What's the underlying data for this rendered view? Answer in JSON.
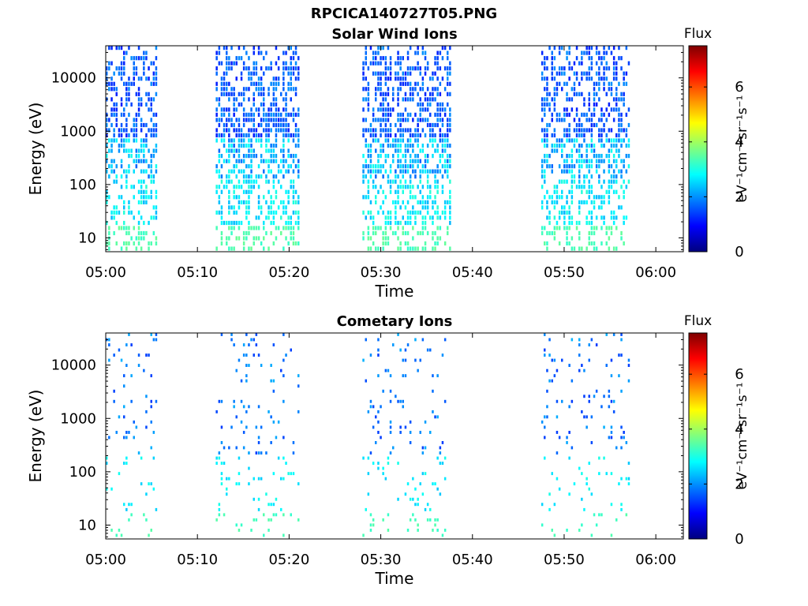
{
  "figure_title": "RPCICA140727T05.PNG",
  "colormap_stops": [
    "#00007f",
    "#0000ff",
    "#007fff",
    "#00ffff",
    "#7fff7f",
    "#ffff00",
    "#ff7f00",
    "#ff0000",
    "#7f0000"
  ],
  "chart_data": [
    {
      "type": "heatmap",
      "title": "Solar Wind Ions",
      "xlabel": "Time",
      "ylabel": "Energy (eV)",
      "y_scale": "log",
      "xlim": [
        "05:00",
        "06:03"
      ],
      "ylim": [
        5.5,
        40000
      ],
      "x_ticks": [
        "05:00",
        "05:10",
        "05:20",
        "05:30",
        "05:40",
        "05:50",
        "06:00"
      ],
      "y_ticks": [
        10,
        100,
        1000,
        10000
      ],
      "y_tick_labels": [
        "10",
        "100",
        "1000",
        "10000"
      ],
      "colorbar": {
        "label": "Flux",
        "unit": "eV⁻¹cm⁻²sr⁻¹s⁻¹",
        "range": [
          0,
          7.5
        ],
        "ticks": [
          0,
          2,
          4,
          6
        ],
        "tick_labels": [
          "0",
          "2",
          "4",
          "6"
        ]
      },
      "series": [
        {
          "start": "05:00",
          "end": "05:05.5",
          "density": 0.55
        },
        {
          "start": "05:12",
          "end": "05:21",
          "density": 0.6
        },
        {
          "start": "05:28",
          "end": "05:37.5",
          "density": 0.6
        },
        {
          "start": "05:47.5",
          "end": "05:57",
          "density": 0.55
        }
      ]
    },
    {
      "type": "heatmap",
      "title": "Cometary Ions",
      "xlabel": "Time",
      "ylabel": "Energy (eV)",
      "y_scale": "log",
      "xlim": [
        "05:00",
        "06:03"
      ],
      "ylim": [
        5.5,
        40000
      ],
      "x_ticks": [
        "05:00",
        "05:10",
        "05:20",
        "05:30",
        "05:40",
        "05:50",
        "06:00"
      ],
      "y_ticks": [
        10,
        100,
        1000,
        10000
      ],
      "y_tick_labels": [
        "10",
        "100",
        "1000",
        "10000"
      ],
      "colorbar": {
        "label": "Flux",
        "unit": "eV⁻¹cm⁻²sr⁻¹s⁻¹",
        "range": [
          0,
          7.5
        ],
        "ticks": [
          0,
          2,
          4,
          6
        ],
        "tick_labels": [
          "0",
          "2",
          "4",
          "6"
        ]
      },
      "series": [
        {
          "start": "05:00",
          "end": "05:05.5",
          "density": 0.12
        },
        {
          "start": "05:12",
          "end": "05:21",
          "density": 0.13
        },
        {
          "start": "05:28",
          "end": "05:37",
          "density": 0.14
        },
        {
          "start": "05:47.5",
          "end": "05:57",
          "density": 0.12
        }
      ]
    }
  ]
}
